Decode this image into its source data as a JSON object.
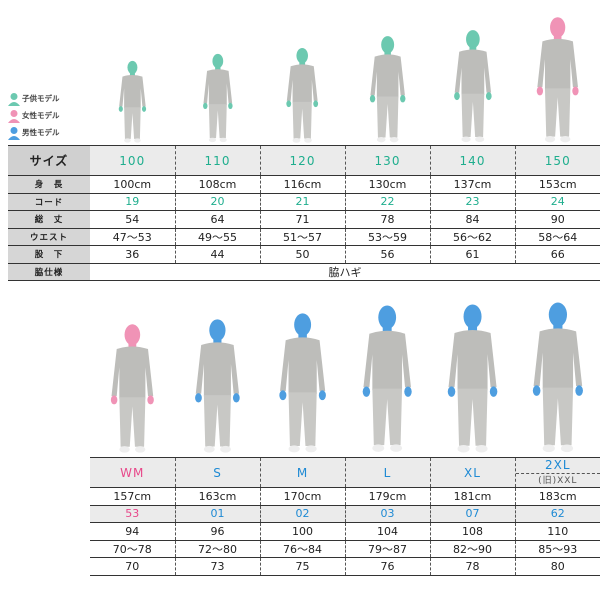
{
  "colors": {
    "kid": "#6cc9b0",
    "woman": "#f093b6",
    "man": "#4e9ee0",
    "suit": "#bdbdba"
  },
  "legend": [
    {
      "label": "子供モデル",
      "icon": "person-icon",
      "color": "#6cc9b0"
    },
    {
      "label": "女性モデル",
      "icon": "person-icon",
      "color": "#f093b6"
    },
    {
      "label": "男性モデル",
      "icon": "person-icon",
      "color": "#4e9ee0"
    }
  ],
  "top": {
    "labels": [
      "サイズ",
      "身　長",
      "コード",
      "総　丈",
      "ウエスト",
      "股　下",
      "脇仕様"
    ],
    "sizes": [
      "100",
      "110",
      "120",
      "130",
      "140",
      "150"
    ],
    "models": [
      "kid",
      "kid",
      "kid",
      "kid",
      "kid",
      "woman"
    ],
    "heights": [
      "100cm",
      "108cm",
      "116cm",
      "130cm",
      "137cm",
      "153cm"
    ],
    "codes": [
      "19",
      "20",
      "21",
      "22",
      "23",
      "24"
    ],
    "length": [
      "54",
      "64",
      "71",
      "78",
      "84",
      "90"
    ],
    "waist": [
      "47〜53",
      "49〜55",
      "51〜57",
      "53〜59",
      "56〜62",
      "58〜64"
    ],
    "inseam": [
      "36",
      "44",
      "50",
      "56",
      "61",
      "66"
    ],
    "side": "脇ハギ"
  },
  "bottom": {
    "sizes": [
      "WM",
      "S",
      "M",
      "L",
      "XL",
      "2XL"
    ],
    "size_sub": "(旧)XXL",
    "models": [
      "woman",
      "man",
      "man",
      "man",
      "man",
      "man"
    ],
    "heights": [
      "157cm",
      "163cm",
      "170cm",
      "179cm",
      "181cm",
      "183cm"
    ],
    "codes": [
      "53",
      "01",
      "02",
      "03",
      "07",
      "62"
    ],
    "length": [
      "94",
      "96",
      "100",
      "104",
      "108",
      "110"
    ],
    "waist": [
      "70〜78",
      "72〜80",
      "76〜84",
      "79〜87",
      "82〜90",
      "85〜93"
    ],
    "inseam": [
      "70",
      "73",
      "75",
      "76",
      "78",
      "80"
    ]
  }
}
